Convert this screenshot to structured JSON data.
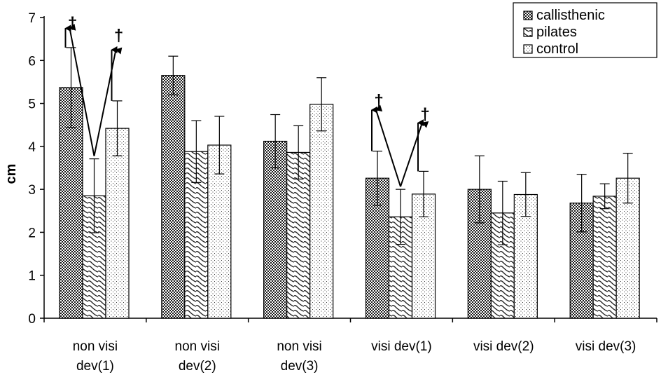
{
  "chart_data": {
    "type": "bar",
    "ylabel": "cm",
    "ylim": [
      0,
      7
    ],
    "yticks": [
      0,
      1,
      2,
      3,
      4,
      5,
      6,
      7
    ],
    "grid": false,
    "legend_position": "top-right",
    "categories": [
      [
        "non visi",
        "dev(1)"
      ],
      [
        "non visi",
        "dev(2)"
      ],
      [
        "non visi",
        "dev(3)"
      ],
      [
        "visi dev(1)"
      ],
      [
        "visi dev(2)"
      ],
      [
        "visi dev(3)"
      ]
    ],
    "series": [
      {
        "name": "callisthenic",
        "pattern": "checker",
        "values": [
          5.37,
          5.65,
          4.12,
          3.26,
          3.0,
          2.68
        ],
        "errors": [
          0.93,
          0.45,
          0.62,
          0.63,
          0.78,
          0.67
        ]
      },
      {
        "name": "pilates",
        "pattern": "waves",
        "values": [
          2.85,
          3.88,
          3.86,
          2.36,
          2.45,
          2.84
        ],
        "errors": [
          0.86,
          0.72,
          0.62,
          0.64,
          0.74,
          0.29
        ]
      },
      {
        "name": "control",
        "pattern": "dots",
        "values": [
          4.42,
          4.03,
          4.98,
          2.89,
          2.88,
          3.26
        ],
        "errors": [
          0.64,
          0.67,
          0.62,
          0.53,
          0.51,
          0.58
        ]
      }
    ],
    "annotations": [
      {
        "text": "†",
        "group": 0,
        "series": 0,
        "arrow_tip": 6.75,
        "label_y": 6.9
      },
      {
        "text": "†",
        "group": 0,
        "series": 2,
        "arrow_tip": 6.25,
        "label_y": 6.62
      },
      {
        "text": "†",
        "group": 3,
        "series": 0,
        "arrow_tip": 4.85,
        "label_y": 5.1
      },
      {
        "text": "†",
        "group": 3,
        "series": 2,
        "arrow_tip": 4.55,
        "label_y": 4.78
      }
    ],
    "colors": {
      "bar_fill": "#ffffff",
      "pattern_ink": "#222222",
      "axis": "#000000"
    }
  }
}
